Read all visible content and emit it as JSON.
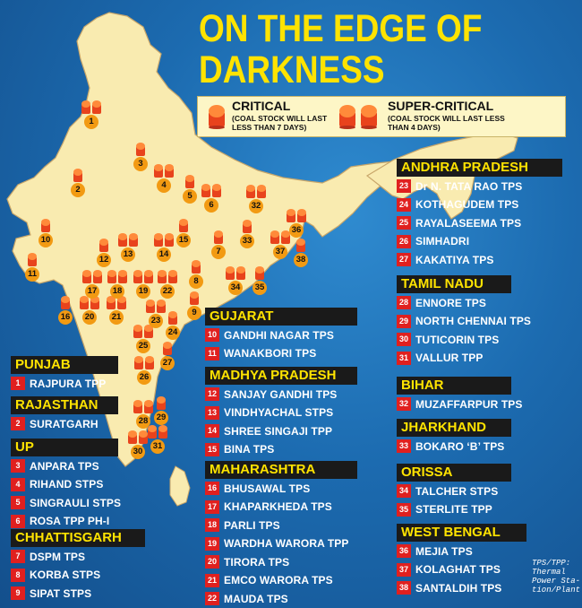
{
  "title": {
    "line1": "ON THE EDGE OF",
    "line2": "DARKNESS"
  },
  "legend": {
    "critical": {
      "label": "CRITICAL",
      "sub1": "(COAL STOCK WILL LAST",
      "sub2": "LESS THAN 7 DAYS)"
    },
    "super_critical": {
      "label": "SUPER-CRITICAL",
      "sub1": "(COAL STOCK WILL LAST LESS",
      "sub2": "THAN 4 DAYS)"
    }
  },
  "colors": {
    "title": "#ffe300",
    "land": "#f9ebb0",
    "sea": "#1d6fb3",
    "number_badge": "#e0201f",
    "header_bg": "#1a1a1a",
    "pin": "#f29a12",
    "coal_icon": "#e8431c"
  },
  "states": {
    "punjab": {
      "name": "PUNJAB",
      "plants": [
        {
          "num": "1",
          "name": "RAJPURA TPP"
        }
      ]
    },
    "rajasthan": {
      "name": "RAJASTHAN",
      "plants": [
        {
          "num": "2",
          "name": "SURATGARH"
        }
      ]
    },
    "up": {
      "name": "UP",
      "plants": [
        {
          "num": "3",
          "name": "ANPARA TPS"
        },
        {
          "num": "4",
          "name": "RIHAND STPS"
        },
        {
          "num": "5",
          "name": "SINGRAULI STPS"
        },
        {
          "num": "6",
          "name": "ROSA TPP PH-I"
        }
      ]
    },
    "chhattisgarh": {
      "name": "CHHATTISGARH",
      "plants": [
        {
          "num": "7",
          "name": "DSPM TPS"
        },
        {
          "num": "8",
          "name": "KORBA STPS"
        },
        {
          "num": "9",
          "name": "SIPAT STPS"
        }
      ]
    },
    "gujarat": {
      "name": "GUJARAT",
      "plants": [
        {
          "num": "10",
          "name": "GANDHI NAGAR TPS"
        },
        {
          "num": "11",
          "name": "WANAKBORI TPS"
        }
      ]
    },
    "madhya_pradesh": {
      "name": "MADHYA PRADESH",
      "plants": [
        {
          "num": "12",
          "name": "SANJAY GANDHI TPS"
        },
        {
          "num": "13",
          "name": "VINDHYACHAL STPS"
        },
        {
          "num": "14",
          "name": "SHREE SINGAJI TPP"
        },
        {
          "num": "15",
          "name": "BINA TPS"
        }
      ]
    },
    "maharashtra": {
      "name": "MAHARASHTRA",
      "plants": [
        {
          "num": "16",
          "name": "BHUSAWAL TPS"
        },
        {
          "num": "17",
          "name": "KHAPARKHEDA TPS"
        },
        {
          "num": "18",
          "name": "PARLI TPS"
        },
        {
          "num": "19",
          "name": "WARDHA WARORA TPP"
        },
        {
          "num": "20",
          "name": "TIRORA TPS"
        },
        {
          "num": "21",
          "name": "EMCO WARORA TPS"
        },
        {
          "num": "22",
          "name": "MAUDA TPS"
        }
      ]
    },
    "andhra_pradesh": {
      "name": "ANDHRA PRADESH",
      "plants": [
        {
          "num": "23",
          "name": "Dr N. TATA RAO TPS"
        },
        {
          "num": "24",
          "name": "KOTHAGUDEM TPS"
        },
        {
          "num": "25",
          "name": "RAYALASEEMA TPS"
        },
        {
          "num": "26",
          "name": "SIMHADRI"
        },
        {
          "num": "27",
          "name": "KAKATIYA TPS"
        }
      ]
    },
    "tamil_nadu": {
      "name": "TAMIL NADU",
      "plants": [
        {
          "num": "28",
          "name": "ENNORE TPS"
        },
        {
          "num": "29",
          "name": "NORTH CHENNAI TPS"
        },
        {
          "num": "30",
          "name": "TUTICORIN TPS"
        },
        {
          "num": "31",
          "name": "VALLUR TPP"
        }
      ]
    },
    "bihar": {
      "name": "BIHAR",
      "plants": [
        {
          "num": "32",
          "name": "MUZAFFARPUR TPS"
        }
      ]
    },
    "jharkhand": {
      "name": "JHARKHAND",
      "plants": [
        {
          "num": "33",
          "name": "BOKARO ‘B’ TPS"
        }
      ]
    },
    "orissa": {
      "name": "ORISSA",
      "plants": [
        {
          "num": "34",
          "name": "TALCHER STPS"
        },
        {
          "num": "35",
          "name": "STERLITE TPP"
        }
      ]
    },
    "west_bengal": {
      "name": "WEST BENGAL",
      "plants": [
        {
          "num": "36",
          "name": "MEJIA TPS"
        },
        {
          "num": "37",
          "name": "KOLAGHAT TPS"
        },
        {
          "num": "38",
          "name": "SANTALDIH TPS"
        }
      ]
    }
  },
  "map_pins": [
    {
      "num": "1",
      "status": "super_critical"
    },
    {
      "num": "2",
      "status": "critical"
    },
    {
      "num": "3",
      "status": "critical"
    },
    {
      "num": "4",
      "status": "super_critical"
    },
    {
      "num": "5",
      "status": "critical"
    },
    {
      "num": "6",
      "status": "super_critical"
    },
    {
      "num": "7",
      "status": "critical"
    },
    {
      "num": "8",
      "status": "critical"
    },
    {
      "num": "9",
      "status": "critical"
    },
    {
      "num": "10",
      "status": "critical"
    },
    {
      "num": "11",
      "status": "critical"
    },
    {
      "num": "12",
      "status": "critical"
    },
    {
      "num": "13",
      "status": "super_critical"
    },
    {
      "num": "14",
      "status": "super_critical"
    },
    {
      "num": "15",
      "status": "critical"
    },
    {
      "num": "16",
      "status": "critical"
    },
    {
      "num": "17",
      "status": "super_critical"
    },
    {
      "num": "18",
      "status": "super_critical"
    },
    {
      "num": "19",
      "status": "super_critical"
    },
    {
      "num": "20",
      "status": "super_critical"
    },
    {
      "num": "21",
      "status": "super_critical"
    },
    {
      "num": "22",
      "status": "super_critical"
    },
    {
      "num": "23",
      "status": "super_critical"
    },
    {
      "num": "24",
      "status": "critical"
    },
    {
      "num": "25",
      "status": "super_critical"
    },
    {
      "num": "26",
      "status": "super_critical"
    },
    {
      "num": "27",
      "status": "critical"
    },
    {
      "num": "28",
      "status": "super_critical"
    },
    {
      "num": "29",
      "status": "critical"
    },
    {
      "num": "30",
      "status": "super_critical"
    },
    {
      "num": "31",
      "status": "super_critical"
    },
    {
      "num": "32",
      "status": "super_critical"
    },
    {
      "num": "33",
      "status": "critical"
    },
    {
      "num": "34",
      "status": "super_critical"
    },
    {
      "num": "35",
      "status": "critical"
    },
    {
      "num": "36",
      "status": "super_critical"
    },
    {
      "num": "37",
      "status": "super_critical"
    },
    {
      "num": "38",
      "status": "critical"
    }
  ],
  "note": {
    "line1": "TPS/TPP:",
    "line2": "Thermal",
    "line3": "Power Sta-",
    "line4": "tion/Plant"
  }
}
